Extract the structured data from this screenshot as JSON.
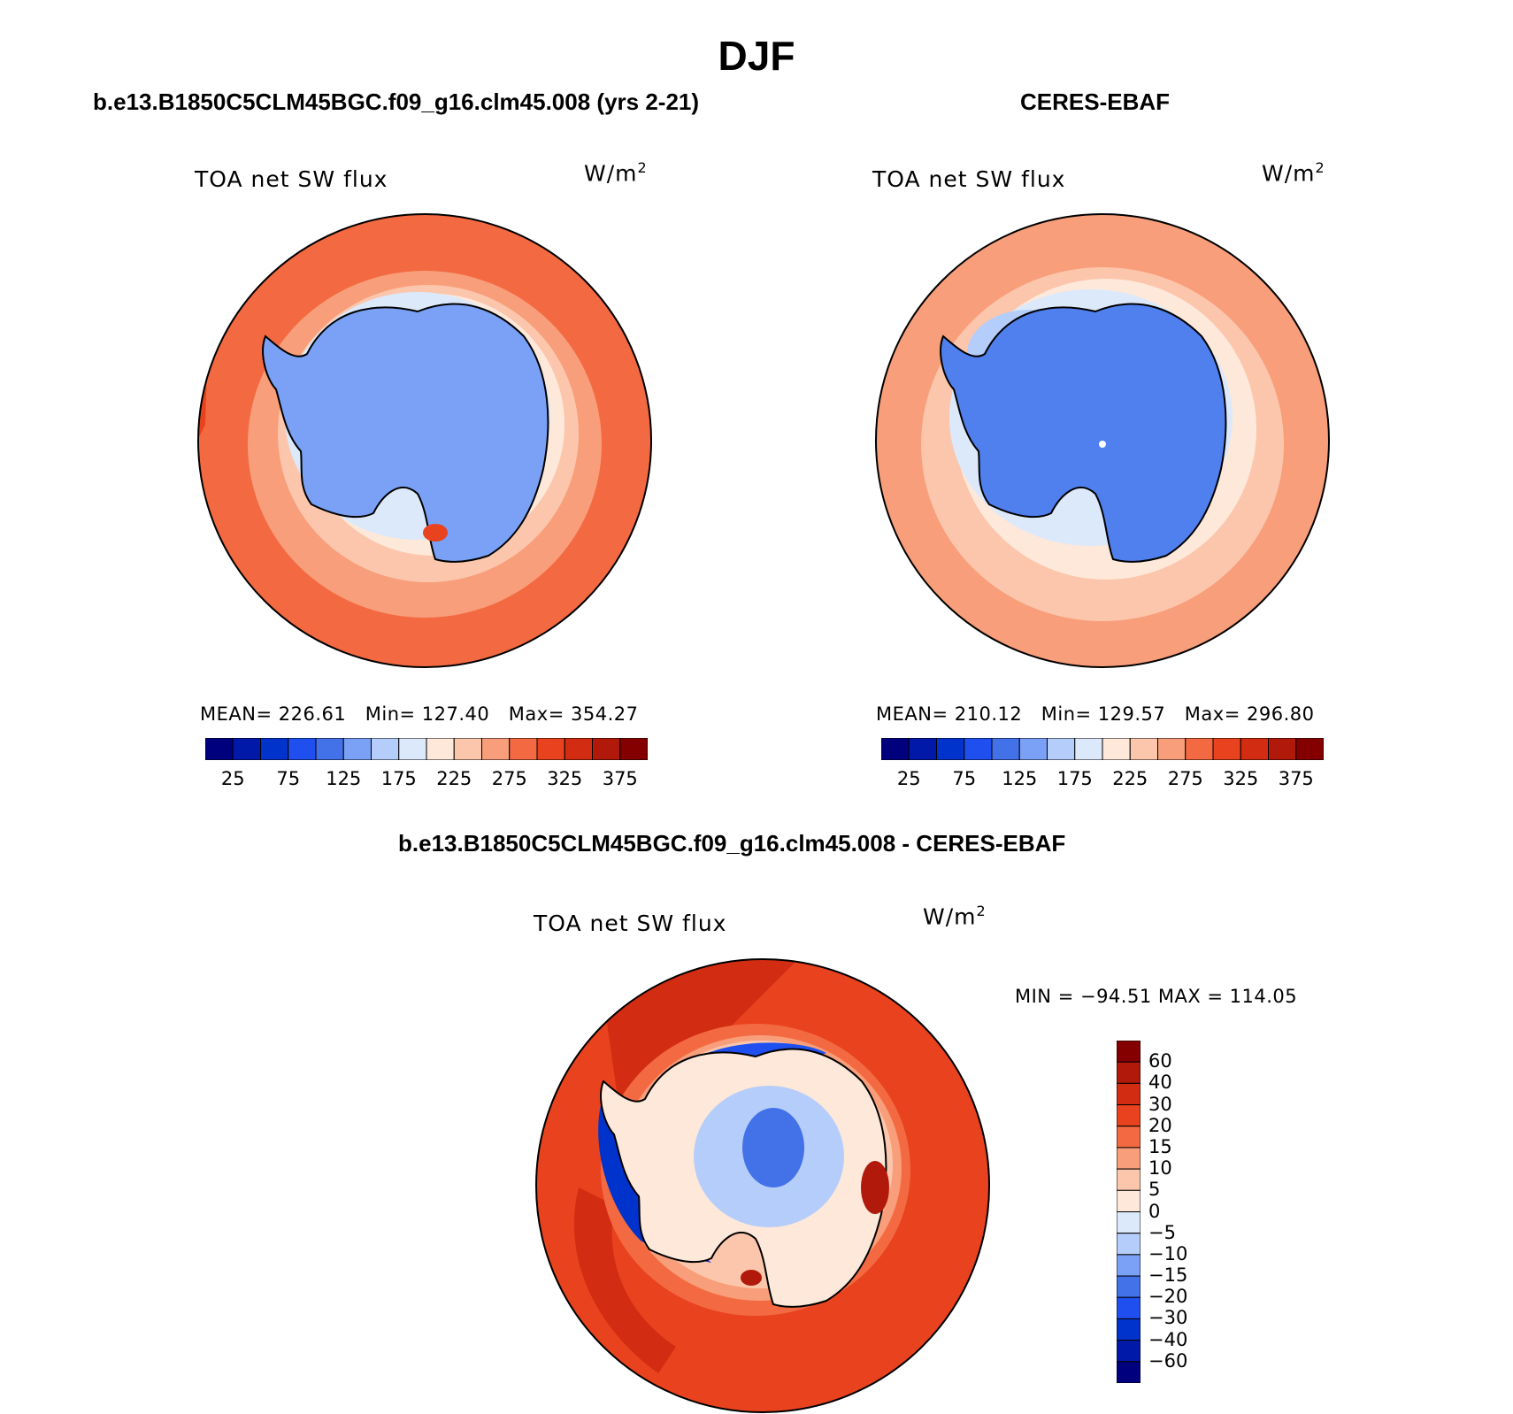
{
  "title": "DJF",
  "colors": {
    "sequential": [
      "#00007f",
      "#0019a8",
      "#0033cc",
      "#1f4fee",
      "#4371e8",
      "#7aa1f5",
      "#b5cdfa",
      "#dce9fb",
      "#fde8da",
      "#fcc6ac",
      "#f89e7a",
      "#f36a42",
      "#e8431e",
      "#d22d12",
      "#b11a0b",
      "#840000"
    ],
    "diverging": [
      "#00007f",
      "#0019a8",
      "#0033cc",
      "#1f4fee",
      "#4371e8",
      "#7aa1f5",
      "#b5cdfa",
      "#dce9fb",
      "#fde8da",
      "#fcc6ac",
      "#f89e7a",
      "#f36a42",
      "#e8431e",
      "#d22d12",
      "#b11a0b",
      "#840000"
    ],
    "coastline": "#000000"
  },
  "panels": [
    {
      "title": "b.e13.B1850C5CLM45BGC.f09_g16.clm45.008 (yrs 2-21)",
      "plot_label": "TOA net SW flux",
      "units": "W/m",
      "units_exp": "2",
      "stats": {
        "mean": "MEAN= 226.61",
        "min": "Min= 127.40",
        "max": "Max= 354.27"
      },
      "colorbar_ticks": [
        "25",
        "75",
        "125",
        "175",
        "225",
        "275",
        "325",
        "375"
      ]
    },
    {
      "title": "CERES-EBAF",
      "plot_label": "TOA net SW flux",
      "units": "W/m",
      "units_exp": "2",
      "stats": {
        "mean": "MEAN= 210.12",
        "min": "Min= 129.57",
        "max": "Max= 296.80"
      },
      "colorbar_ticks": [
        "25",
        "75",
        "125",
        "175",
        "225",
        "275",
        "325",
        "375"
      ]
    }
  ],
  "diff_panel": {
    "title": "b.e13.B1850C5CLM45BGC.f09_g16.clm45.008 - CERES-EBAF",
    "plot_label": "TOA net SW flux",
    "units": "W/m",
    "units_exp": "2",
    "minmax": "MIN = −94.51  MAX = 114.05",
    "colorbar_ticks": [
      "60",
      "40",
      "30",
      "20",
      "15",
      "10",
      "5",
      "0",
      "−5",
      "−10",
      "−15",
      "−20",
      "−30",
      "−40",
      "−60"
    ]
  }
}
